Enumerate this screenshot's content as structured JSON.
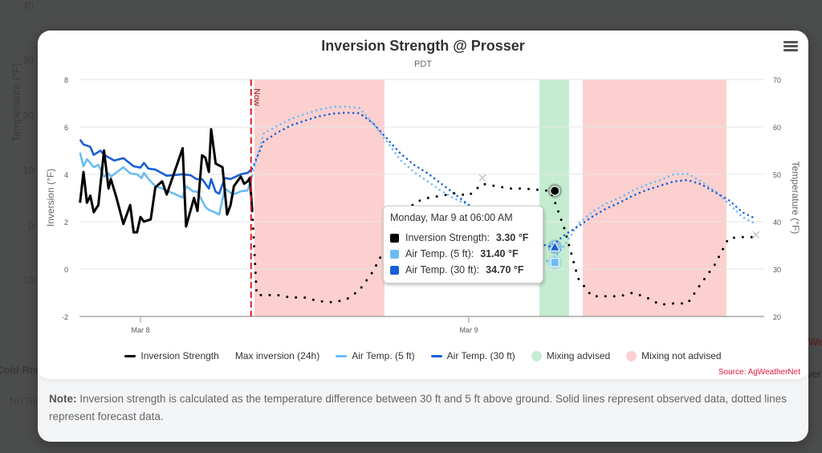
{
  "background": {
    "y_axis_title": "Temperature (°F)",
    "y_ticks": [
      "40",
      "30",
      "20",
      "10",
      "0",
      "-10"
    ],
    "section_label": "Cold Ris",
    "status_label": "No Ris",
    "right_label_1": "Wea",
    "right_label_2": "ver"
  },
  "modal": {
    "menu_icon": "hamburger-icon",
    "note_bold": "Note:",
    "note_text": " Inversion strength is calculated as the temperature difference between 30 ft and 5 ft above ground. Solid lines represent observed data, dotted lines represent forecast data.",
    "source": "Source: AgWeatherNet"
  },
  "tooltip": {
    "header": "Monday, Mar 9 at 06:00 AM",
    "rows": [
      {
        "label": "Inversion Strength:",
        "value": "3.30 °F",
        "color": "#000000"
      },
      {
        "label": "Air Temp. (5 ft):",
        "value": "31.40 °F",
        "color": "#6cbcf5"
      },
      {
        "label": "Air Temp. (30 ft):",
        "value": "34.70 °F",
        "color": "#1a5fd6"
      }
    ]
  },
  "chart_data": {
    "type": "line",
    "title": "Inversion Strength @ Prosser",
    "subtitle": "PDT",
    "x_ticks": [
      "Mar 8",
      "Mar 9"
    ],
    "y_left": {
      "title": "Inversion (°F)",
      "range": [
        -2,
        8
      ],
      "ticks": [
        "8",
        "6",
        "4",
        "2",
        "0",
        "-2"
      ]
    },
    "y_right": {
      "title": "Temperature (°F)",
      "range": [
        20,
        70
      ],
      "ticks": [
        "70",
        "60",
        "50",
        "40",
        "30",
        "20"
      ]
    },
    "grid": true,
    "legend_position": "bottom",
    "now": {
      "label": "Now",
      "time": "Mar 8 08:05",
      "color": "#e8191e"
    },
    "bands": [
      {
        "kind": "Mixing not advised",
        "from": "Mar 8 08:20",
        "to": "Mar 8 17:50",
        "color": "#fbd0cf"
      },
      {
        "kind": "Mixing advised",
        "from": "Mar 9 05:10",
        "to": "Mar 9 07:20",
        "color": "#c5ecd0"
      },
      {
        "kind": "Mixing not advised",
        "from": "Mar 9 08:20",
        "to": "Mar 9 18:50",
        "color": "#fbd0cf"
      }
    ],
    "legend": [
      {
        "name": "Inversion Strength",
        "symbol": "line",
        "color": "#000000"
      },
      {
        "name": "Max inversion (24h)",
        "symbol": "none",
        "color": "#cccccc"
      },
      {
        "name": "Air Temp. (5 ft)",
        "symbol": "line",
        "color": "#6cbcf5"
      },
      {
        "name": "Air Temp. (30 ft)",
        "symbol": "line",
        "color": "#1a5fd6"
      },
      {
        "name": "Mixing advised",
        "symbol": "dot",
        "color": "#c5ecd0"
      },
      {
        "name": "Mixing not advised",
        "symbol": "dot",
        "color": "#fbd0cf"
      }
    ],
    "series": [
      {
        "name": "Inversion Strength",
        "axis": "left",
        "color": "#000000",
        "observed": [
          [
            "Mar 7 19:35",
            2.8
          ],
          [
            "Mar 7 19:50",
            4.1
          ],
          [
            "Mar 7 20:05",
            2.8
          ],
          [
            "Mar 7 20:20",
            3.1
          ],
          [
            "Mar 7 20:35",
            2.4
          ],
          [
            "Mar 7 20:55",
            2.7
          ],
          [
            "Mar 7 21:20",
            5.0
          ],
          [
            "Mar 7 21:40",
            3.4
          ],
          [
            "Mar 7 21:50",
            3.8
          ],
          [
            "Mar 7 22:15",
            3.0
          ],
          [
            "Mar 7 22:45",
            1.9
          ],
          [
            "Mar 7 23:15",
            2.7
          ],
          [
            "Mar 7 23:30",
            1.55
          ],
          [
            "Mar 7 23:45",
            1.55
          ],
          [
            "Mar 8 00:00",
            2.2
          ],
          [
            "Mar 8 00:15",
            2.0
          ],
          [
            "Mar 8 00:45",
            2.1
          ],
          [
            "Mar 8 01:05",
            3.45
          ],
          [
            "Mar 8 01:35",
            3.7
          ],
          [
            "Mar 8 01:55",
            3.15
          ],
          [
            "Mar 8 03:05",
            5.1
          ],
          [
            "Mar 8 03:20",
            1.8
          ],
          [
            "Mar 8 03:55",
            3.0
          ],
          [
            "Mar 8 04:10",
            2.45
          ],
          [
            "Mar 8 04:30",
            4.8
          ],
          [
            "Mar 8 04:45",
            4.7
          ],
          [
            "Mar 8 05:00",
            4.1
          ],
          [
            "Mar 8 05:10",
            5.9
          ],
          [
            "Mar 8 05:30",
            4.45
          ],
          [
            "Mar 8 06:00",
            4.3
          ],
          [
            "Mar 8 06:20",
            2.3
          ],
          [
            "Mar 8 06:35",
            2.7
          ],
          [
            "Mar 8 06:50",
            3.5
          ],
          [
            "Mar 8 07:20",
            3.9
          ],
          [
            "Mar 8 07:35",
            3.6
          ],
          [
            "Mar 8 07:50",
            3.7
          ],
          [
            "Mar 8 08:00",
            3.85
          ],
          [
            "Mar 8 08:10",
            2.45
          ]
        ],
        "forecast": [
          [
            "Mar 8 08:10",
            2.45
          ],
          [
            "Mar 8 08:30",
            -1.1
          ],
          [
            "Mar 8 09:00",
            -1.1
          ],
          [
            "Mar 8 10:00",
            -1.1
          ],
          [
            "Mar 8 11:00",
            -1.2
          ],
          [
            "Mar 8 12:00",
            -1.2
          ],
          [
            "Mar 8 13:00",
            -1.35
          ],
          [
            "Mar 8 14:00",
            -1.4
          ],
          [
            "Mar 8 15:00",
            -1.3
          ],
          [
            "Mar 8 16:00",
            -0.9
          ],
          [
            "Mar 8 17:00",
            -0.1
          ],
          [
            "Mar 8 18:00",
            1.0
          ],
          [
            "Mar 8 19:00",
            2.0
          ],
          [
            "Mar 8 20:00",
            2.8
          ],
          [
            "Mar 8 21:00",
            3.0
          ],
          [
            "Mar 8 22:00",
            3.1
          ],
          [
            "Mar 8 23:00",
            3.2
          ],
          [
            "Mar 9 00:00",
            3.1
          ],
          [
            "Mar 9 01:00",
            3.6
          ],
          [
            "Mar 9 02:00",
            3.5
          ],
          [
            "Mar 9 03:00",
            3.4
          ],
          [
            "Mar 9 04:00",
            3.4
          ],
          [
            "Mar 9 05:00",
            3.35
          ],
          [
            "Mar 9 06:00",
            3.3
          ],
          [
            "Mar 9 07:00",
            1.7
          ],
          [
            "Mar 9 08:00",
            -0.4
          ],
          [
            "Mar 9 09:00",
            -1.15
          ],
          [
            "Mar 9 10:00",
            -1.15
          ],
          [
            "Mar 9 11:00",
            -1.15
          ],
          [
            "Mar 9 12:00",
            -1.0
          ],
          [
            "Mar 9 13:00",
            -1.2
          ],
          [
            "Mar 9 14:00",
            -1.5
          ],
          [
            "Mar 9 15:00",
            -1.45
          ],
          [
            "Mar 9 16:00",
            -1.45
          ],
          [
            "Mar 9 17:00",
            -0.6
          ],
          [
            "Mar 9 18:00",
            0.2
          ],
          [
            "Mar 9 19:00",
            1.3
          ],
          [
            "Mar 9 20:00",
            1.35
          ],
          [
            "Mar 9 21:00",
            1.35
          ]
        ]
      },
      {
        "name": "Air Temp. (5 ft)",
        "axis": "right",
        "color": "#6cbcf5",
        "observed": [
          [
            "Mar 7 19:35",
            54.6
          ],
          [
            "Mar 7 19:50",
            51.7
          ],
          [
            "Mar 7 20:05",
            53.2
          ],
          [
            "Mar 7 20:35",
            51.5
          ],
          [
            "Mar 7 20:55",
            52.0
          ],
          [
            "Mar 7 21:20",
            49.5
          ],
          [
            "Mar 7 21:40",
            50.2
          ],
          [
            "Mar 7 21:50",
            49.5
          ],
          [
            "Mar 7 22:45",
            51.5
          ],
          [
            "Mar 7 23:15",
            50.2
          ],
          [
            "Mar 7 23:45",
            50.0
          ],
          [
            "Mar 8 00:05",
            49.2
          ],
          [
            "Mar 8 00:15",
            50.3
          ],
          [
            "Mar 8 00:35",
            49.0
          ],
          [
            "Mar 8 01:05",
            47.5
          ],
          [
            "Mar 8 01:35",
            47.0
          ],
          [
            "Mar 8 03:05",
            45.1
          ],
          [
            "Mar 8 03:20",
            47.5
          ],
          [
            "Mar 8 03:50",
            46.4
          ],
          [
            "Mar 8 04:10",
            46.3
          ],
          [
            "Mar 8 04:45",
            43.1
          ],
          [
            "Mar 8 05:00",
            42.5
          ],
          [
            "Mar 8 05:30",
            41.9
          ],
          [
            "Mar 8 05:45",
            41.5
          ],
          [
            "Mar 8 06:10",
            47.0
          ],
          [
            "Mar 8 06:35",
            46.1
          ],
          [
            "Mar 8 06:50",
            45.8
          ],
          [
            "Mar 8 07:20",
            46.4
          ],
          [
            "Mar 8 07:50",
            46.6
          ],
          [
            "Mar 8 08:10",
            49.8
          ]
        ],
        "forecast": [
          [
            "Mar 8 08:10",
            49.8
          ],
          [
            "Mar 8 09:00",
            58.6
          ],
          [
            "Mar 8 10:00",
            60.2
          ],
          [
            "Mar 8 11:00",
            61.7
          ],
          [
            "Mar 8 12:00",
            62.7
          ],
          [
            "Mar 8 13:00",
            63.6
          ],
          [
            "Mar 8 14:00",
            64.2
          ],
          [
            "Mar 8 15:00",
            64.3
          ],
          [
            "Mar 8 16:00",
            64.0
          ],
          [
            "Mar 8 17:00",
            60.8
          ],
          [
            "Mar 8 18:00",
            57.0
          ],
          [
            "Mar 8 19:00",
            53.0
          ],
          [
            "Mar 8 20:00",
            50.5
          ],
          [
            "Mar 8 21:00",
            48.5
          ],
          [
            "Mar 8 22:00",
            46.5
          ],
          [
            "Mar 8 23:00",
            44.8
          ],
          [
            "Mar 9 00:00",
            43.5
          ],
          [
            "Mar 9 01:00",
            41.0
          ],
          [
            "Mar 9 02:00",
            38.5
          ],
          [
            "Mar 9 03:00",
            36.0
          ],
          [
            "Mar 9 04:00",
            34.0
          ],
          [
            "Mar 9 05:00",
            32.5
          ],
          [
            "Mar 9 06:00",
            31.4
          ],
          [
            "Mar 9 07:00",
            35.0
          ],
          [
            "Mar 9 08:00",
            39.5
          ],
          [
            "Mar 9 09:00",
            42.0
          ],
          [
            "Mar 9 10:00",
            43.8
          ],
          [
            "Mar 9 11:00",
            45.0
          ],
          [
            "Mar 9 12:00",
            46.6
          ],
          [
            "Mar 9 13:00",
            47.8
          ],
          [
            "Mar 9 14:00",
            48.8
          ],
          [
            "Mar 9 15:00",
            50.0
          ],
          [
            "Mar 9 16:00",
            50.1
          ],
          [
            "Mar 9 17:00",
            48.5
          ],
          [
            "Mar 9 18:00",
            46.5
          ],
          [
            "Mar 9 19:00",
            43.8
          ],
          [
            "Mar 9 20:00",
            41.0
          ],
          [
            "Mar 9 21:00",
            39.5
          ]
        ]
      },
      {
        "name": "Air Temp. (30 ft)",
        "axis": "right",
        "color": "#1a5fd6",
        "observed": [
          [
            "Mar 7 19:35",
            57.3
          ],
          [
            "Mar 7 19:50",
            56.3
          ],
          [
            "Mar 7 20:20",
            55.8
          ],
          [
            "Mar 7 20:35",
            54.1
          ],
          [
            "Mar 7 21:05",
            55.0
          ],
          [
            "Mar 7 21:20",
            54.1
          ],
          [
            "Mar 7 22:05",
            52.9
          ],
          [
            "Mar 7 22:45",
            53.4
          ],
          [
            "Mar 7 23:30",
            51.7
          ],
          [
            "Mar 8 00:00",
            51.4
          ],
          [
            "Mar 8 00:15",
            52.4
          ],
          [
            "Mar 8 00:35",
            51.2
          ],
          [
            "Mar 8 01:05",
            51.0
          ],
          [
            "Mar 8 01:55",
            49.7
          ],
          [
            "Mar 8 03:05",
            50.0
          ],
          [
            "Mar 8 03:40",
            49.8
          ],
          [
            "Mar 8 04:05",
            49.0
          ],
          [
            "Mar 8 04:30",
            49.0
          ],
          [
            "Mar 8 05:00",
            47.0
          ],
          [
            "Mar 8 05:10",
            49.0
          ],
          [
            "Mar 8 05:30",
            46.3
          ],
          [
            "Mar 8 05:45",
            45.9
          ],
          [
            "Mar 8 06:10",
            49.2
          ],
          [
            "Mar 8 06:35",
            49.0
          ],
          [
            "Mar 8 07:20",
            50.0
          ],
          [
            "Mar 8 07:50",
            50.3
          ],
          [
            "Mar 8 08:10",
            51.2
          ]
        ],
        "forecast": [
          [
            "Mar 8 08:10",
            51.2
          ],
          [
            "Mar 8 09:00",
            56.9
          ],
          [
            "Mar 8 10:00",
            58.8
          ],
          [
            "Mar 8 11:00",
            60.3
          ],
          [
            "Mar 8 12:00",
            61.3
          ],
          [
            "Mar 8 13:00",
            62.2
          ],
          [
            "Mar 8 14:00",
            62.8
          ],
          [
            "Mar 8 15:00",
            63.0
          ],
          [
            "Mar 8 16:00",
            62.9
          ],
          [
            "Mar 8 17:00",
            60.8
          ],
          [
            "Mar 8 18:00",
            57.6
          ],
          [
            "Mar 8 19:00",
            54.4
          ],
          [
            "Mar 8 20:00",
            52.0
          ],
          [
            "Mar 8 21:00",
            50.2
          ],
          [
            "Mar 8 22:00",
            48.0
          ],
          [
            "Mar 8 23:00",
            45.8
          ],
          [
            "Mar 9 00:00",
            43.5
          ],
          [
            "Mar 9 01:00",
            41.5
          ],
          [
            "Mar 9 02:00",
            39.5
          ],
          [
            "Mar 9 03:00",
            37.8
          ],
          [
            "Mar 9 04:00",
            36.5
          ],
          [
            "Mar 9 05:00",
            35.5
          ],
          [
            "Mar 9 06:00",
            34.7
          ],
          [
            "Mar 9 07:00",
            37.2
          ],
          [
            "Mar 9 08:00",
            39.0
          ],
          [
            "Mar 9 09:00",
            41.0
          ],
          [
            "Mar 9 10:00",
            42.7
          ],
          [
            "Mar 9 11:00",
            44.0
          ],
          [
            "Mar 9 12:00",
            45.5
          ],
          [
            "Mar 9 13:00",
            46.7
          ],
          [
            "Mar 9 14:00",
            47.6
          ],
          [
            "Mar 9 15:00",
            48.5
          ],
          [
            "Mar 9 16:00",
            48.8
          ],
          [
            "Mar 9 17:00",
            47.9
          ],
          [
            "Mar 9 18:00",
            46.2
          ],
          [
            "Mar 9 19:00",
            44.6
          ],
          [
            "Mar 9 20:00",
            42.0
          ],
          [
            "Mar 9 21:00",
            40.6
          ]
        ]
      }
    ],
    "max_inversion_24h": [
      [
        "Mar 9 01:00",
        3.85
      ],
      [
        "Mar 9 21:00",
        1.45
      ]
    ],
    "highlighted_time": "Mar 9 06:00"
  }
}
